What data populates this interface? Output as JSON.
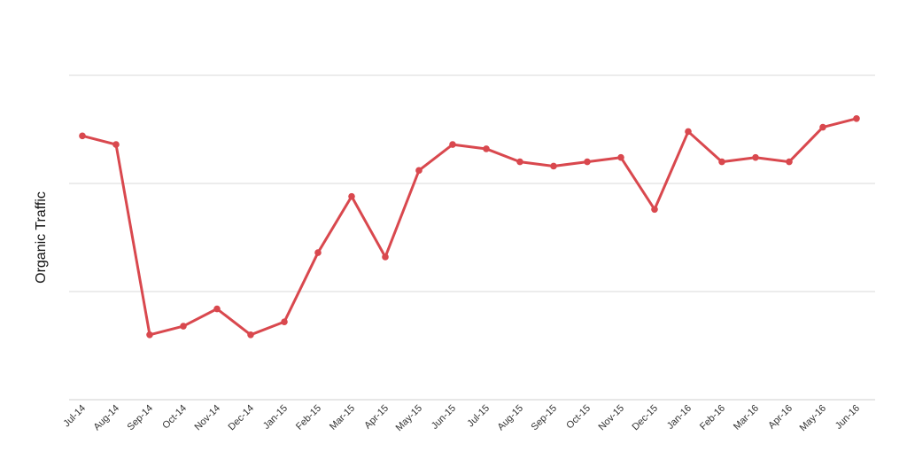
{
  "chart_data": {
    "type": "line",
    "title": "",
    "xlabel": "",
    "ylabel": "Organic Traffic",
    "ylim": [
      0,
      3
    ],
    "yticks_labeled": false,
    "grid": true,
    "legend": "none",
    "categories": [
      "Jul-14",
      "Aug-14",
      "Sep-14",
      "Oct-14",
      "Nov-14",
      "Dec-14",
      "Jan-15",
      "Feb-15",
      "Mar-15",
      "Apr-15",
      "May-15",
      "Jun-15",
      "Jul-15",
      "Aug-15",
      "Sep-15",
      "Oct-15",
      "Nov-15",
      "Dec-15",
      "Jan-16",
      "Feb-16",
      "Mar-16",
      "Apr-16",
      "May-16",
      "Jun-16"
    ],
    "series": [
      {
        "color": "#d9484e",
        "values": [
          2.44,
          2.36,
          0.6,
          0.68,
          0.84,
          0.6,
          0.72,
          1.36,
          1.88,
          1.32,
          2.12,
          2.36,
          2.32,
          2.2,
          2.16,
          2.2,
          2.24,
          1.76,
          2.48,
          2.2,
          2.24,
          2.2,
          2.52,
          2.6
        ]
      }
    ]
  }
}
